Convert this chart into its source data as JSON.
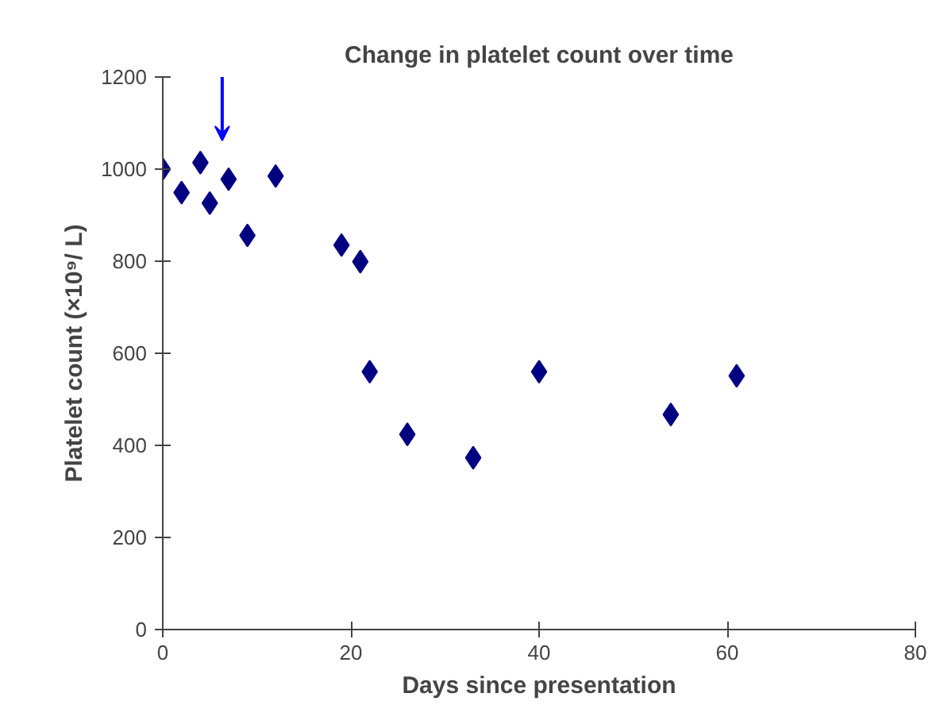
{
  "chart_data": {
    "type": "scatter",
    "title": "Change in platelet count over time",
    "xlabel": "Days since presentation",
    "ylabel": "Platelet count (×10⁹/ L)",
    "x": [
      0,
      2,
      4,
      5,
      7,
      9,
      12,
      19,
      21,
      22,
      26,
      33,
      40,
      54,
      61
    ],
    "values": [
      1000,
      949,
      1014,
      926,
      978,
      856,
      985,
      835,
      799,
      560,
      424,
      373,
      560,
      467,
      551
    ],
    "color": "#000080",
    "marker": "diamond",
    "grid": false,
    "xlim": [
      0,
      80
    ],
    "xticks": [
      0,
      20,
      40,
      60,
      80
    ],
    "ylim": [
      0,
      1200
    ],
    "yticks": [
      0,
      200,
      400,
      600,
      800,
      1000,
      1200
    ]
  }
}
